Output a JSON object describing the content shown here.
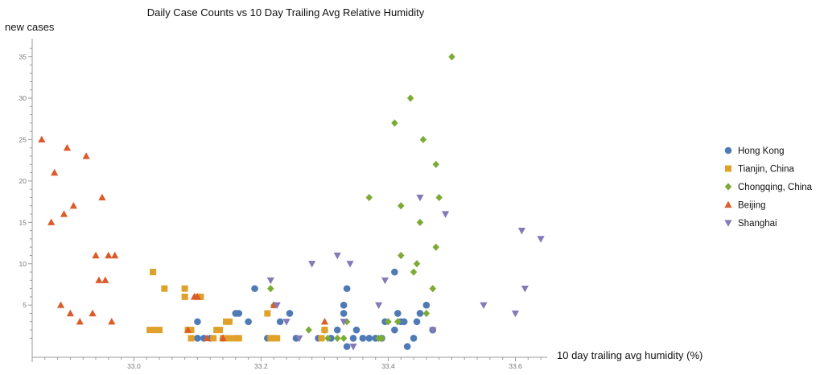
{
  "chart_data": {
    "type": "scatter",
    "title": "Daily Case Counts vs 10 Day Trailing Avg Relative Humidity",
    "xlabel": "10 day trailing avg humidity (%)",
    "ylabel": "new cases",
    "xlim": [
      32.84,
      33.65
    ],
    "ylim": [
      -1.3,
      37
    ],
    "x_ticks": [
      "33.0",
      "33.2",
      "33.4",
      "33.6"
    ],
    "y_ticks": [
      "5",
      "10",
      "15",
      "20",
      "25",
      "30",
      "35"
    ],
    "legend_position": "right",
    "grid": false,
    "series": [
      {
        "name": "Hong Kong",
        "marker": "circle",
        "color": "#4f7ab5",
        "points": [
          [
            33.1,
            3
          ],
          [
            33.1,
            1
          ],
          [
            33.11,
            1
          ],
          [
            33.12,
            1
          ],
          [
            33.14,
            1
          ],
          [
            33.16,
            4
          ],
          [
            33.165,
            4
          ],
          [
            33.18,
            3
          ],
          [
            33.19,
            7
          ],
          [
            33.21,
            1
          ],
          [
            33.23,
            3
          ],
          [
            33.245,
            4
          ],
          [
            33.255,
            1
          ],
          [
            33.29,
            1
          ],
          [
            33.3,
            2
          ],
          [
            33.31,
            1
          ],
          [
            33.32,
            2
          ],
          [
            33.33,
            4
          ],
          [
            33.33,
            5
          ],
          [
            33.335,
            7
          ],
          [
            33.335,
            0
          ],
          [
            33.345,
            1
          ],
          [
            33.35,
            2
          ],
          [
            33.36,
            1
          ],
          [
            33.37,
            1
          ],
          [
            33.38,
            1
          ],
          [
            33.39,
            1
          ],
          [
            33.395,
            3
          ],
          [
            33.41,
            9
          ],
          [
            33.41,
            2
          ],
          [
            33.415,
            4
          ],
          [
            33.42,
            3
          ],
          [
            33.425,
            3
          ],
          [
            33.43,
            0
          ],
          [
            33.44,
            1
          ],
          [
            33.445,
            3
          ],
          [
            33.45,
            4
          ],
          [
            33.46,
            5
          ],
          [
            33.47,
            2
          ]
        ]
      },
      {
        "name": "Tianjin, China",
        "marker": "square",
        "color": "#e0a12a",
        "points": [
          [
            33.025,
            2
          ],
          [
            33.03,
            9
          ],
          [
            33.035,
            2
          ],
          [
            33.04,
            2
          ],
          [
            33.048,
            7
          ],
          [
            33.08,
            7
          ],
          [
            33.08,
            6
          ],
          [
            33.085,
            2
          ],
          [
            33.09,
            2
          ],
          [
            33.09,
            1
          ],
          [
            33.1,
            6
          ],
          [
            33.105,
            6
          ],
          [
            33.125,
            1
          ],
          [
            33.13,
            2
          ],
          [
            33.135,
            2
          ],
          [
            33.14,
            1
          ],
          [
            33.145,
            3
          ],
          [
            33.15,
            3
          ],
          [
            33.15,
            1
          ],
          [
            33.16,
            1
          ],
          [
            33.165,
            1
          ],
          [
            33.21,
            4
          ],
          [
            33.215,
            1
          ],
          [
            33.22,
            1
          ],
          [
            33.225,
            1
          ],
          [
            33.295,
            1
          ],
          [
            33.3,
            2
          ]
        ]
      },
      {
        "name": "Chongqing, China",
        "marker": "diamond",
        "color": "#7cab35",
        "points": [
          [
            33.215,
            7
          ],
          [
            33.22,
            5
          ],
          [
            33.275,
            2
          ],
          [
            33.305,
            1
          ],
          [
            33.32,
            1
          ],
          [
            33.33,
            1
          ],
          [
            33.335,
            3
          ],
          [
            33.37,
            18
          ],
          [
            33.385,
            1
          ],
          [
            33.39,
            1
          ],
          [
            33.4,
            3
          ],
          [
            33.41,
            27
          ],
          [
            33.415,
            3
          ],
          [
            33.42,
            17
          ],
          [
            33.42,
            11
          ],
          [
            33.435,
            30
          ],
          [
            33.44,
            9
          ],
          [
            33.445,
            10
          ],
          [
            33.45,
            15
          ],
          [
            33.455,
            25
          ],
          [
            33.46,
            4
          ],
          [
            33.47,
            7
          ],
          [
            33.475,
            12
          ],
          [
            33.475,
            22
          ],
          [
            33.48,
            18
          ],
          [
            33.5,
            35
          ]
        ]
      },
      {
        "name": "Beijing",
        "marker": "triangle-up",
        "color": "#dc5b2b",
        "points": [
          [
            32.855,
            25
          ],
          [
            32.87,
            15
          ],
          [
            32.875,
            21
          ],
          [
            32.885,
            5
          ],
          [
            32.89,
            16
          ],
          [
            32.895,
            24
          ],
          [
            32.9,
            4
          ],
          [
            32.905,
            17
          ],
          [
            32.915,
            3
          ],
          [
            32.925,
            23
          ],
          [
            32.935,
            4
          ],
          [
            32.94,
            11
          ],
          [
            32.945,
            8
          ],
          [
            32.95,
            18
          ],
          [
            32.955,
            8
          ],
          [
            32.96,
            11
          ],
          [
            32.965,
            3
          ],
          [
            32.97,
            11
          ],
          [
            33.085,
            2
          ],
          [
            33.095,
            6
          ],
          [
            33.1,
            6
          ],
          [
            33.115,
            1
          ],
          [
            33.14,
            1
          ],
          [
            33.22,
            5
          ],
          [
            33.3,
            3
          ]
        ]
      },
      {
        "name": "Shanghai",
        "marker": "triangle-down",
        "color": "#8579b8",
        "points": [
          [
            33.215,
            8
          ],
          [
            33.225,
            5
          ],
          [
            33.24,
            3
          ],
          [
            33.26,
            1
          ],
          [
            33.28,
            10
          ],
          [
            33.32,
            11
          ],
          [
            33.33,
            3
          ],
          [
            33.34,
            10
          ],
          [
            33.345,
            0
          ],
          [
            33.385,
            5
          ],
          [
            33.395,
            8
          ],
          [
            33.45,
            18
          ],
          [
            33.47,
            2
          ],
          [
            33.49,
            16
          ],
          [
            33.55,
            5
          ],
          [
            33.6,
            4
          ],
          [
            33.61,
            14
          ],
          [
            33.615,
            7
          ],
          [
            33.64,
            13
          ]
        ]
      }
    ]
  }
}
